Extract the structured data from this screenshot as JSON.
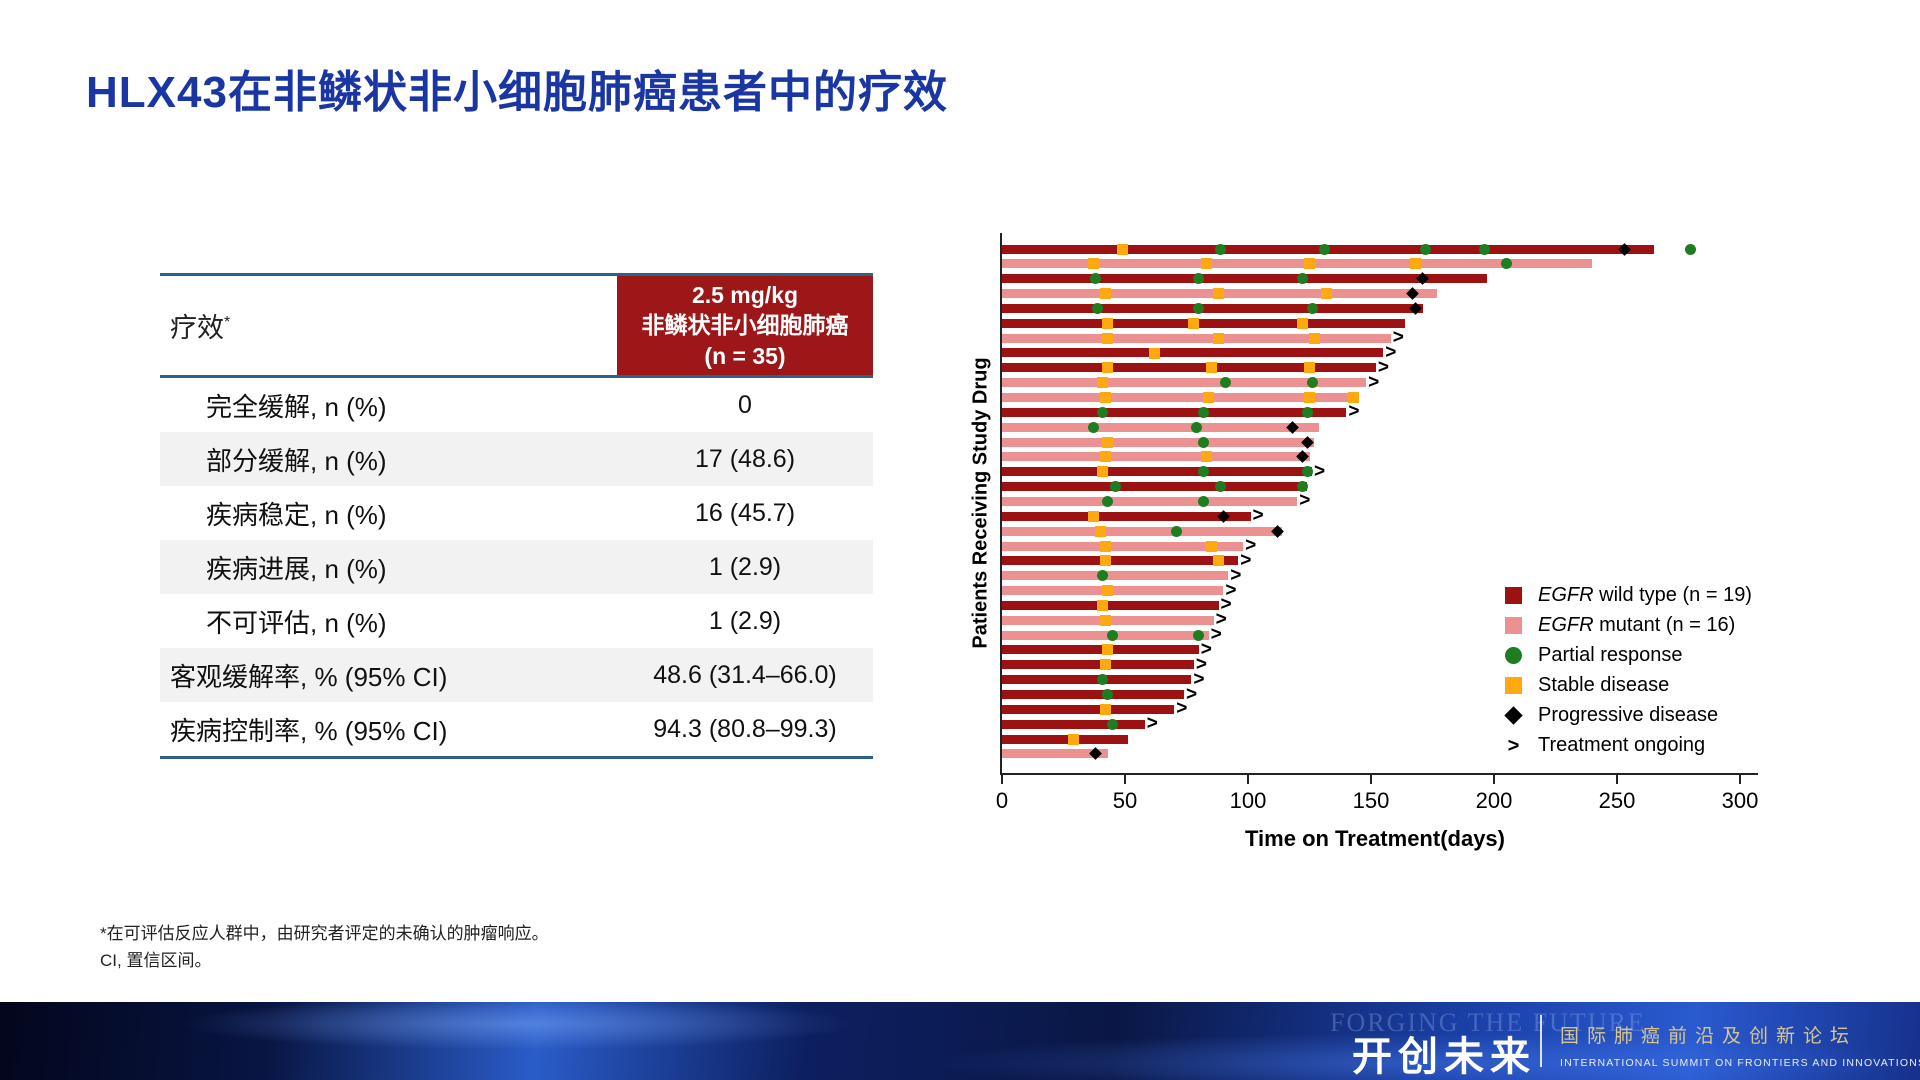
{
  "title": "HLX43在非鳞状非小细胞肺癌患者中的疗效",
  "table": {
    "header_left": "疗效",
    "header_left_sup": "*",
    "header_right_lines": [
      "2.5 mg/kg",
      "非鳞状非小细胞肺癌",
      "(n = 35)"
    ],
    "rows": [
      {
        "label": "完全缓解, n (%)",
        "value": "0",
        "indent": true
      },
      {
        "label": "部分缓解, n (%)",
        "value": "17 (48.6)",
        "indent": true
      },
      {
        "label": "疾病稳定, n (%)",
        "value": "16 (45.7)",
        "indent": true
      },
      {
        "label": "疾病进展, n (%)",
        "value": "1 (2.9)",
        "indent": true
      },
      {
        "label": "不可评估, n (%)",
        "value": "1 (2.9)",
        "indent": true
      },
      {
        "label": "客观缓解率, % (95% CI)",
        "value": "48.6 (31.4–66.0)",
        "indent": false
      },
      {
        "label": "疾病控制率, % (95% CI)",
        "value": "94.3 (80.8–99.3)",
        "indent": false
      }
    ]
  },
  "chart_data": {
    "type": "bar",
    "variant": "swimmer-plot",
    "xlabel": "Time on Treatment(days)",
    "ylabel": "Patients Receiving Study Drug",
    "xlim": [
      0,
      300
    ],
    "xticks": [
      0,
      50,
      100,
      150,
      200,
      250,
      300
    ],
    "ongoing_symbol": ">",
    "group_colors": {
      "wild": "#9c1212",
      "mutant": "#ec9191"
    },
    "marker_colors": {
      "pr": "#1e7d1e",
      "sd": "#ffa912",
      "pd": "#000000"
    },
    "legend": [
      {
        "swatch": "square",
        "color": "#9c1212",
        "italic": "EGFR",
        "label": " wild type (n = 19)"
      },
      {
        "swatch": "square",
        "color": "#ec9191",
        "italic": "EGFR",
        "label": " mutant (n = 16)"
      },
      {
        "swatch": "circle",
        "color": "#1e7d1e",
        "italic": "",
        "label": "Partial response"
      },
      {
        "swatch": "square",
        "color": "#ffa912",
        "italic": "",
        "label": "Stable disease"
      },
      {
        "swatch": "diamond",
        "color": "#000000",
        "italic": "",
        "label": "Progressive disease"
      },
      {
        "swatch": "gt",
        "color": "#000000",
        "italic": "",
        "label": "Treatment ongoing"
      }
    ],
    "patients": [
      {
        "group": "wild",
        "days": 265,
        "ongoing": false,
        "markers": [
          [
            "sd",
            49
          ],
          [
            "pr",
            89
          ],
          [
            "pr",
            131
          ],
          [
            "pr",
            172
          ],
          [
            "pr",
            196
          ],
          [
            "pd",
            253
          ],
          [
            "pr",
            280
          ]
        ]
      },
      {
        "group": "mutant",
        "days": 240,
        "ongoing": false,
        "markers": [
          [
            "sd",
            37
          ],
          [
            "sd",
            83
          ],
          [
            "sd",
            125
          ],
          [
            "sd",
            168
          ],
          [
            "pr",
            205
          ]
        ]
      },
      {
        "group": "wild",
        "days": 197,
        "ongoing": false,
        "markers": [
          [
            "pr",
            38
          ],
          [
            "pr",
            80
          ],
          [
            "pr",
            122
          ],
          [
            "pd",
            171
          ]
        ]
      },
      {
        "group": "mutant",
        "days": 177,
        "ongoing": false,
        "markers": [
          [
            "sd",
            42
          ],
          [
            "sd",
            88
          ],
          [
            "sd",
            132
          ],
          [
            "pd",
            167
          ]
        ]
      },
      {
        "group": "wild",
        "days": 171,
        "ongoing": false,
        "markers": [
          [
            "pr",
            39
          ],
          [
            "pr",
            80
          ],
          [
            "pr",
            126
          ],
          [
            "pd",
            168
          ]
        ]
      },
      {
        "group": "wild",
        "days": 164,
        "ongoing": false,
        "markers": [
          [
            "sd",
            43
          ],
          [
            "sd",
            78
          ],
          [
            "sd",
            122
          ]
        ]
      },
      {
        "group": "mutant",
        "days": 158,
        "ongoing": true,
        "markers": [
          [
            "sd",
            43
          ],
          [
            "sd",
            88
          ],
          [
            "sd",
            127
          ]
        ]
      },
      {
        "group": "wild",
        "days": 155,
        "ongoing": true,
        "markers": [
          [
            "sd",
            62
          ]
        ]
      },
      {
        "group": "wild",
        "days": 152,
        "ongoing": true,
        "markers": [
          [
            "sd",
            43
          ],
          [
            "sd",
            85
          ],
          [
            "sd",
            125
          ]
        ]
      },
      {
        "group": "mutant",
        "days": 148,
        "ongoing": true,
        "markers": [
          [
            "sd",
            41
          ],
          [
            "pr",
            91
          ],
          [
            "pr",
            126
          ]
        ]
      },
      {
        "group": "mutant",
        "days": 145,
        "ongoing": false,
        "markers": [
          [
            "sd",
            42
          ],
          [
            "sd",
            84
          ],
          [
            "sd",
            125
          ],
          [
            "sd",
            143
          ]
        ]
      },
      {
        "group": "wild",
        "days": 140,
        "ongoing": true,
        "markers": [
          [
            "pr",
            41
          ],
          [
            "pr",
            82
          ],
          [
            "pr",
            124
          ]
        ]
      },
      {
        "group": "mutant",
        "days": 129,
        "ongoing": false,
        "markers": [
          [
            "pr",
            37
          ],
          [
            "pr",
            79
          ],
          [
            "pd",
            118
          ]
        ]
      },
      {
        "group": "mutant",
        "days": 127,
        "ongoing": false,
        "markers": [
          [
            "sd",
            43
          ],
          [
            "pr",
            82
          ],
          [
            "pd",
            124
          ]
        ]
      },
      {
        "group": "mutant",
        "days": 125,
        "ongoing": false,
        "markers": [
          [
            "sd",
            42
          ],
          [
            "sd",
            83
          ],
          [
            "pd",
            122
          ]
        ]
      },
      {
        "group": "wild",
        "days": 126,
        "ongoing": true,
        "markers": [
          [
            "sd",
            41
          ],
          [
            "pr",
            82
          ],
          [
            "pr",
            124
          ]
        ]
      },
      {
        "group": "wild",
        "days": 124,
        "ongoing": false,
        "markers": [
          [
            "pr",
            46
          ],
          [
            "pr",
            89
          ],
          [
            "pr",
            122
          ]
        ]
      },
      {
        "group": "mutant",
        "days": 120,
        "ongoing": true,
        "markers": [
          [
            "pr",
            43
          ],
          [
            "pr",
            82
          ]
        ]
      },
      {
        "group": "wild",
        "days": 101,
        "ongoing": true,
        "markers": [
          [
            "sd",
            37
          ],
          [
            "pd",
            90
          ]
        ]
      },
      {
        "group": "mutant",
        "days": 114,
        "ongoing": false,
        "markers": [
          [
            "sd",
            40
          ],
          [
            "pr",
            71
          ],
          [
            "pd",
            112
          ]
        ]
      },
      {
        "group": "mutant",
        "days": 98,
        "ongoing": true,
        "markers": [
          [
            "sd",
            42
          ],
          [
            "sd",
            85
          ]
        ]
      },
      {
        "group": "wild",
        "days": 96,
        "ongoing": true,
        "markers": [
          [
            "sd",
            42
          ],
          [
            "sd",
            88
          ]
        ]
      },
      {
        "group": "mutant",
        "days": 92,
        "ongoing": true,
        "markers": [
          [
            "pr",
            41
          ]
        ]
      },
      {
        "group": "mutant",
        "days": 90,
        "ongoing": true,
        "markers": [
          [
            "sd",
            43
          ]
        ]
      },
      {
        "group": "wild",
        "days": 88,
        "ongoing": true,
        "markers": [
          [
            "sd",
            41
          ]
        ]
      },
      {
        "group": "mutant",
        "days": 86,
        "ongoing": true,
        "markers": [
          [
            "sd",
            42
          ]
        ]
      },
      {
        "group": "mutant",
        "days": 84,
        "ongoing": true,
        "markers": [
          [
            "pr",
            45
          ],
          [
            "pr",
            80
          ]
        ]
      },
      {
        "group": "wild",
        "days": 80,
        "ongoing": true,
        "markers": [
          [
            "sd",
            43
          ]
        ]
      },
      {
        "group": "wild",
        "days": 78,
        "ongoing": true,
        "markers": [
          [
            "sd",
            42
          ]
        ]
      },
      {
        "group": "wild",
        "days": 77,
        "ongoing": true,
        "markers": [
          [
            "pr",
            41
          ]
        ]
      },
      {
        "group": "wild",
        "days": 74,
        "ongoing": true,
        "markers": [
          [
            "pr",
            43
          ]
        ]
      },
      {
        "group": "wild",
        "days": 70,
        "ongoing": true,
        "markers": [
          [
            "sd",
            42
          ]
        ]
      },
      {
        "group": "wild",
        "days": 58,
        "ongoing": true,
        "markers": [
          [
            "pr",
            45
          ]
        ]
      },
      {
        "group": "wild",
        "days": 51,
        "ongoing": false,
        "markers": [
          [
            "sd",
            29
          ]
        ]
      },
      {
        "group": "mutant",
        "days": 43,
        "ongoing": false,
        "markers": [
          [
            "pd",
            38
          ]
        ]
      }
    ]
  },
  "footnotes": [
    "*在可评估反应人群中，由研究者评定的未确认的肿瘤响应。",
    "CI, 置信区间。"
  ],
  "banner": {
    "ghost_text": "FORGING THE FUTURE",
    "brand": "开创未来",
    "forum_cn": "国际肺癌前沿及创新论坛",
    "forum_en": "INTERNATIONAL SUMMIT ON FRONTIERS AND INNOVATIONS IN LUNG CANCER"
  }
}
